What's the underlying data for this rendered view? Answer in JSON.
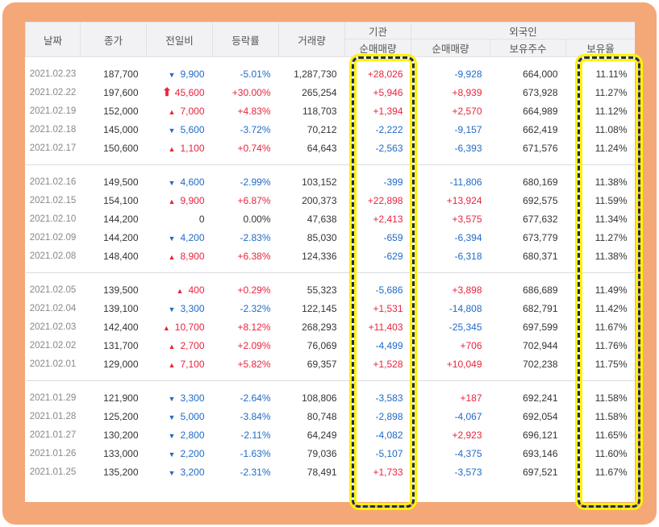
{
  "headers": {
    "date": "날짜",
    "close": "종가",
    "change": "전일비",
    "rate": "등락률",
    "volume": "거래량",
    "institution": "기관",
    "foreign": "외국인",
    "inst_net": "순매매량",
    "foreign_net": "순매매량",
    "foreign_hold": "보유주수",
    "foreign_ratio": "보유율"
  },
  "colors": {
    "up": "#e8243d",
    "down": "#1e6ac8",
    "frame": "#f4a877",
    "highlight_border": "#1c2d57",
    "highlight_glow": "#fff200"
  },
  "icons": {
    "up": "up-triangle-icon",
    "down": "down-triangle-icon",
    "upper_limit": "upper-limit-arrow-icon"
  },
  "groups": [
    {
      "rows": [
        {
          "date": "2021.02.23",
          "close": "187,700",
          "dir": "down",
          "change": "9,900",
          "rate": "-5.01%",
          "volume": "1,287,730",
          "inst": "+28,026",
          "frgn": "-9,928",
          "hold": "664,000",
          "ratio": "11.11%"
        },
        {
          "date": "2021.02.22",
          "close": "197,600",
          "dir": "limit",
          "change": "45,600",
          "rate": "+30.00%",
          "volume": "265,254",
          "inst": "+5,946",
          "frgn": "+8,939",
          "hold": "673,928",
          "ratio": "11.27%"
        },
        {
          "date": "2021.02.19",
          "close": "152,000",
          "dir": "up",
          "change": "7,000",
          "rate": "+4.83%",
          "volume": "118,703",
          "inst": "+1,394",
          "frgn": "+2,570",
          "hold": "664,989",
          "ratio": "11.12%"
        },
        {
          "date": "2021.02.18",
          "close": "145,000",
          "dir": "down",
          "change": "5,600",
          "rate": "-3.72%",
          "volume": "70,212",
          "inst": "-2,222",
          "frgn": "-9,157",
          "hold": "662,419",
          "ratio": "11.08%"
        },
        {
          "date": "2021.02.17",
          "close": "150,600",
          "dir": "up",
          "change": "1,100",
          "rate": "+0.74%",
          "volume": "64,643",
          "inst": "-2,563",
          "frgn": "-6,393",
          "hold": "671,576",
          "ratio": "11.24%"
        }
      ]
    },
    {
      "rows": [
        {
          "date": "2021.02.16",
          "close": "149,500",
          "dir": "down",
          "change": "4,600",
          "rate": "-2.99%",
          "volume": "103,152",
          "inst": "-399",
          "frgn": "-11,806",
          "hold": "680,169",
          "ratio": "11.38%"
        },
        {
          "date": "2021.02.15",
          "close": "154,100",
          "dir": "up",
          "change": "9,900",
          "rate": "+6.87%",
          "volume": "200,373",
          "inst": "+22,898",
          "frgn": "+13,924",
          "hold": "692,575",
          "ratio": "11.59%"
        },
        {
          "date": "2021.02.10",
          "close": "144,200",
          "dir": "none",
          "change": "0",
          "rate": "0.00%",
          "volume": "47,638",
          "inst": "+2,413",
          "frgn": "+3,575",
          "hold": "677,632",
          "ratio": "11.34%"
        },
        {
          "date": "2021.02.09",
          "close": "144,200",
          "dir": "down",
          "change": "4,200",
          "rate": "-2.83%",
          "volume": "85,030",
          "inst": "-659",
          "frgn": "-6,394",
          "hold": "673,779",
          "ratio": "11.27%"
        },
        {
          "date": "2021.02.08",
          "close": "148,400",
          "dir": "up",
          "change": "8,900",
          "rate": "+6.38%",
          "volume": "124,336",
          "inst": "-629",
          "frgn": "-6,318",
          "hold": "680,371",
          "ratio": "11.38%"
        }
      ]
    },
    {
      "rows": [
        {
          "date": "2021.02.05",
          "close": "139,500",
          "dir": "up",
          "change": "400",
          "rate": "+0.29%",
          "volume": "55,323",
          "inst": "-5,686",
          "frgn": "+3,898",
          "hold": "686,689",
          "ratio": "11.49%"
        },
        {
          "date": "2021.02.04",
          "close": "139,100",
          "dir": "down",
          "change": "3,300",
          "rate": "-2.32%",
          "volume": "122,145",
          "inst": "+1,531",
          "frgn": "-14,808",
          "hold": "682,791",
          "ratio": "11.42%"
        },
        {
          "date": "2021.02.03",
          "close": "142,400",
          "dir": "up",
          "change": "10,700",
          "rate": "+8.12%",
          "volume": "268,293",
          "inst": "+11,403",
          "frgn": "-25,345",
          "hold": "697,599",
          "ratio": "11.67%"
        },
        {
          "date": "2021.02.02",
          "close": "131,700",
          "dir": "up",
          "change": "2,700",
          "rate": "+2.09%",
          "volume": "76,069",
          "inst": "-4,499",
          "frgn": "+706",
          "hold": "702,944",
          "ratio": "11.76%"
        },
        {
          "date": "2021.02.01",
          "close": "129,000",
          "dir": "up",
          "change": "7,100",
          "rate": "+5.82%",
          "volume": "69,357",
          "inst": "+1,528",
          "frgn": "+10,049",
          "hold": "702,238",
          "ratio": "11.75%"
        }
      ]
    },
    {
      "rows": [
        {
          "date": "2021.01.29",
          "close": "121,900",
          "dir": "down",
          "change": "3,300",
          "rate": "-2.64%",
          "volume": "108,806",
          "inst": "-3,583",
          "frgn": "+187",
          "hold": "692,241",
          "ratio": "11.58%"
        },
        {
          "date": "2021.01.28",
          "close": "125,200",
          "dir": "down",
          "change": "5,000",
          "rate": "-3.84%",
          "volume": "80,748",
          "inst": "-2,898",
          "frgn": "-4,067",
          "hold": "692,054",
          "ratio": "11.58%"
        },
        {
          "date": "2021.01.27",
          "close": "130,200",
          "dir": "down",
          "change": "2,800",
          "rate": "-2.11%",
          "volume": "64,249",
          "inst": "-4,082",
          "frgn": "+2,923",
          "hold": "696,121",
          "ratio": "11.65%"
        },
        {
          "date": "2021.01.26",
          "close": "133,000",
          "dir": "down",
          "change": "2,200",
          "rate": "-1.63%",
          "volume": "79,036",
          "inst": "-5,107",
          "frgn": "-4,375",
          "hold": "693,146",
          "ratio": "11.60%"
        },
        {
          "date": "2021.01.25",
          "close": "135,200",
          "dir": "down",
          "change": "3,200",
          "rate": "-2.31%",
          "volume": "78,491",
          "inst": "+1,733",
          "frgn": "-3,573",
          "hold": "697,521",
          "ratio": "11.67%"
        }
      ]
    }
  ]
}
